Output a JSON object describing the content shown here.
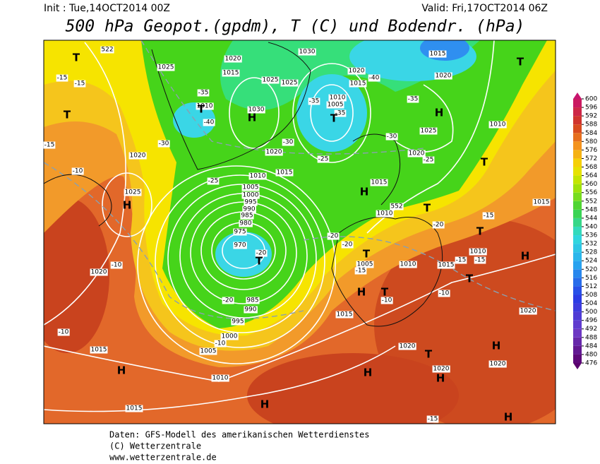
{
  "header": {
    "init": "Init : Tue,14OCT2014 00Z",
    "valid": "Valid: Fri,17OCT2014 06Z",
    "title": "500 hPa Geopot.(gpdm), T (C) und Bodendr. (hPa)"
  },
  "map": {
    "isobar_labels": [
      1020,
      1015,
      1025,
      1025,
      1030,
      1010,
      1025,
      1020,
      1015,
      1010,
      1005,
      1000,
      995,
      990,
      985,
      980,
      975,
      970,
      985,
      990,
      995,
      1000,
      1005,
      1010,
      1015,
      1015,
      1020,
      1020,
      1025,
      1030,
      1020,
      1015,
      1010,
      1005,
      1015,
      1010,
      1005,
      1010,
      1015,
      1010,
      1015,
      1020,
      1020,
      1020,
      1020,
      1025,
      1020,
      1010,
      1015,
      1020,
      1015
    ],
    "temperature_labels": [
      -30,
      -35,
      -40,
      -30,
      -25,
      -25,
      -35,
      -35,
      -40,
      -35,
      -30,
      -25,
      -20,
      -20,
      -20,
      -20,
      -15,
      -15,
      -15,
      -10,
      -10,
      -15,
      -20,
      -10,
      -10,
      -10,
      -15,
      -15,
      -10,
      -15,
      -15
    ],
    "height_labels": [
      552,
      522
    ],
    "pressure_centers": [
      "T",
      "T",
      "T",
      "H",
      "T",
      "T",
      "H",
      "H",
      "T",
      "T",
      "H",
      "T",
      "T",
      "T",
      "H",
      "H",
      "T",
      "T",
      "H",
      "H",
      "H",
      "T",
      "H",
      "H",
      "H"
    ]
  },
  "colorbar": {
    "ticks": [
      476,
      480,
      484,
      488,
      492,
      496,
      500,
      504,
      508,
      512,
      516,
      520,
      524,
      528,
      532,
      536,
      540,
      544,
      548,
      552,
      556,
      560,
      564,
      568,
      572,
      576,
      580,
      584,
      588,
      592,
      596,
      600
    ]
  },
  "footer": {
    "source": "Daten: GFS-Modell des amerikanischen Wetterdienstes",
    "copyright": "(C) Wetterzentrale",
    "url": "www.wetterzentrale.de"
  }
}
